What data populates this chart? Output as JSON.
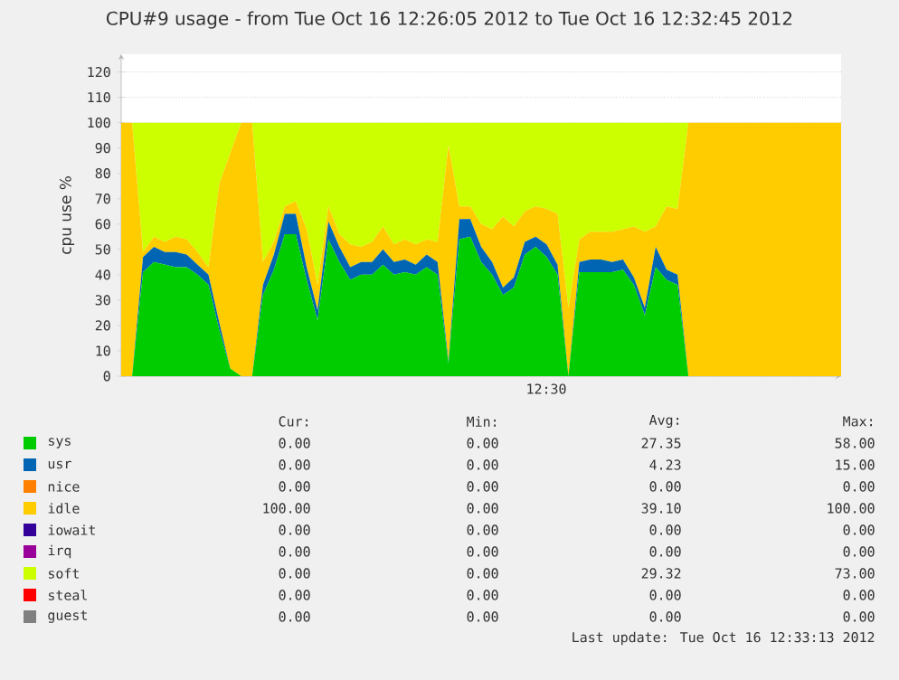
{
  "chart_data": {
    "type": "area",
    "stacked": true,
    "title": "CPU#9 usage - from Tue Oct 16 12:26:05 2012 to Tue Oct 16 12:32:45 2012",
    "ylabel": "cpu use %",
    "categories": [
      null,
      null,
      null,
      null,
      null,
      null,
      null,
      null,
      null,
      null,
      null,
      null,
      null,
      null,
      null,
      null,
      null,
      null,
      null,
      null,
      null,
      null,
      null,
      null,
      null,
      null,
      null,
      null,
      null,
      null,
      null,
      null,
      null,
      null,
      null,
      null,
      null,
      null,
      null,
      null,
      null,
      null,
      null,
      null,
      null,
      null,
      null,
      null,
      null,
      null,
      null,
      null,
      null,
      null,
      null,
      null,
      null,
      null,
      null,
      null,
      null,
      null,
      null,
      null,
      null,
      null,
      null
    ],
    "series": [
      {
        "name": "sys",
        "color": "#00cc00",
        "values": [
          0,
          0,
          41,
          45,
          44,
          43,
          43,
          40,
          36,
          18,
          3,
          0,
          0,
          32,
          42,
          56,
          56,
          38,
          22,
          54,
          45,
          38,
          40,
          40,
          44,
          40,
          41,
          40,
          43,
          40,
          5,
          54,
          55,
          45,
          40,
          32,
          35,
          48,
          51,
          47,
          40,
          0,
          41,
          41,
          41,
          41,
          42,
          36,
          24,
          43,
          38,
          36,
          0,
          0,
          0,
          0,
          0,
          0,
          0,
          0,
          0,
          0,
          0,
          0,
          0,
          0,
          0
        ]
      },
      {
        "name": "usr",
        "color": "#0066b3",
        "values": [
          0,
          0,
          6,
          6,
          5,
          6,
          5,
          4,
          4,
          3,
          0,
          0,
          0,
          4,
          6,
          8,
          8,
          5,
          4,
          7,
          6,
          5,
          5,
          5,
          6,
          5,
          5,
          4,
          5,
          5,
          1,
          8,
          7,
          6,
          5,
          3,
          4,
          5,
          4,
          5,
          4,
          0,
          4,
          5,
          5,
          4,
          4,
          3,
          3,
          8,
          4,
          4,
          0,
          0,
          0,
          0,
          0,
          0,
          0,
          0,
          0,
          0,
          0,
          0,
          0,
          0,
          0
        ]
      },
      {
        "name": "nice",
        "color": "#ff8000",
        "values": [
          null,
          null,
          null,
          null,
          null,
          null,
          null,
          null,
          null,
          null,
          null,
          null,
          null,
          null,
          null,
          null,
          null,
          null,
          null,
          null,
          null,
          null,
          null,
          null,
          null,
          null,
          null,
          null,
          null,
          null,
          null,
          null,
          null,
          null,
          null,
          null,
          null,
          null,
          null,
          null,
          null,
          null,
          null,
          null,
          null,
          null,
          null,
          null,
          null,
          null,
          null,
          null,
          null,
          null,
          null,
          null,
          null,
          null,
          null,
          null,
          null,
          null,
          null,
          null,
          null,
          null,
          null
        ]
      },
      {
        "name": "idle",
        "color": "#ffcc00",
        "values": [
          100,
          100,
          2,
          4,
          4,
          6,
          6,
          5,
          3,
          55,
          85,
          100,
          100,
          9,
          5,
          3,
          5,
          15,
          10,
          6,
          5,
          9,
          6,
          8,
          9,
          7,
          8,
          8,
          6,
          8,
          85,
          5,
          5,
          9,
          13,
          28,
          20,
          12,
          12,
          14,
          20,
          27,
          9,
          11,
          11,
          12,
          12,
          20,
          30,
          8,
          25,
          26,
          100,
          100,
          100,
          100,
          100,
          100,
          100,
          100,
          100,
          100,
          100,
          100,
          100,
          100,
          100
        ]
      },
      {
        "name": "iowait",
        "color": "#330099",
        "values": [
          null,
          null,
          null,
          null,
          null,
          null,
          null,
          null,
          null,
          null,
          null,
          null,
          null,
          null,
          null,
          null,
          null,
          null,
          null,
          null,
          null,
          null,
          null,
          null,
          null,
          null,
          null,
          null,
          null,
          null,
          null,
          null,
          null,
          null,
          null,
          null,
          null,
          null,
          null,
          null,
          null,
          null,
          null,
          null,
          null,
          null,
          null,
          null,
          null,
          null,
          null,
          null,
          null,
          null,
          null,
          null,
          null,
          null,
          null,
          null,
          null,
          null,
          null,
          null,
          null,
          null,
          null
        ]
      },
      {
        "name": "irq",
        "color": "#990099",
        "values": [
          null,
          null,
          null,
          null,
          null,
          null,
          null,
          null,
          null,
          null,
          null,
          null,
          null,
          null,
          null,
          null,
          null,
          null,
          null,
          null,
          null,
          null,
          null,
          null,
          null,
          null,
          null,
          null,
          null,
          null,
          null,
          null,
          null,
          null,
          null,
          null,
          null,
          null,
          null,
          null,
          null,
          null,
          null,
          null,
          null,
          null,
          null,
          null,
          null,
          null,
          null,
          null,
          null,
          null,
          null,
          null,
          null,
          null,
          null,
          null,
          null,
          null,
          null,
          null,
          null,
          null,
          null
        ]
      },
      {
        "name": "soft",
        "color": "#ccff00",
        "values": [
          0,
          0,
          51,
          45,
          47,
          45,
          46,
          51,
          57,
          24,
          12,
          0,
          0,
          55,
          47,
          33,
          31,
          42,
          64,
          33,
          44,
          48,
          49,
          47,
          41,
          48,
          46,
          48,
          46,
          47,
          9,
          33,
          33,
          40,
          42,
          37,
          41,
          35,
          33,
          34,
          36,
          73,
          46,
          43,
          43,
          43,
          42,
          41,
          43,
          41,
          33,
          34,
          0,
          0,
          0,
          0,
          0,
          0,
          0,
          0,
          0,
          0,
          0,
          0,
          0,
          0,
          0
        ]
      },
      {
        "name": "steal",
        "color": "#ff0000",
        "values": [
          null,
          null,
          null,
          null,
          null,
          null,
          null,
          null,
          null,
          null,
          null,
          null,
          null,
          null,
          null,
          null,
          null,
          null,
          null,
          null,
          null,
          null,
          null,
          null,
          null,
          null,
          null,
          null,
          null,
          null,
          null,
          null,
          null,
          null,
          null,
          null,
          null,
          null,
          null,
          null,
          null,
          null,
          null,
          null,
          null,
          null,
          null,
          null,
          null,
          null,
          null,
          null,
          null,
          null,
          null,
          null,
          null,
          null,
          null,
          null,
          null,
          null,
          null,
          null,
          null,
          null,
          null
        ]
      },
      {
        "name": "guest",
        "color": "#808080",
        "values": [
          null,
          null,
          null,
          null,
          null,
          null,
          null,
          null,
          null,
          null,
          null,
          null,
          null,
          null,
          null,
          null,
          null,
          null,
          null,
          null,
          null,
          null,
          null,
          null,
          null,
          null,
          null,
          null,
          null,
          null,
          null,
          null,
          null,
          null,
          null,
          null,
          null,
          null,
          null,
          null,
          null,
          null,
          null,
          null,
          null,
          null,
          null,
          null,
          null,
          null,
          null,
          null,
          null,
          null,
          null,
          null,
          null,
          null,
          null,
          null,
          null,
          null,
          null,
          null,
          null,
          null,
          null
        ]
      }
    ],
    "ylim": [
      0,
      127
    ],
    "yticks": [
      0,
      10,
      20,
      30,
      40,
      50,
      60,
      70,
      80,
      90,
      100,
      110,
      120
    ],
    "grid": "y",
    "legend": "bottom",
    "annotations": [
      "Cur:",
      "Min:",
      "Avg:",
      "Max:",
      "0.00",
      "0.00",
      "27.35",
      "58.00",
      "0.00",
      "0.00",
      "4.23",
      "15.00",
      "0.00",
      "0.00",
      "0.00",
      "0.00",
      "100.00",
      "0.00",
      "39.10",
      "100.00",
      "0.00",
      "0.00",
      "0.00",
      "0.00",
      "0.00",
      "0.00",
      "0.00",
      "0.00",
      "0.00",
      "0.00",
      "29.32",
      "73.00",
      "0.00",
      "0.00",
      "0.00",
      "0.00",
      "0.00",
      "0.00",
      "0.00",
      "0.00",
      "Last update:  Tue Oct 16 12:33:13 2012",
      "12:30"
    ]
  }
}
